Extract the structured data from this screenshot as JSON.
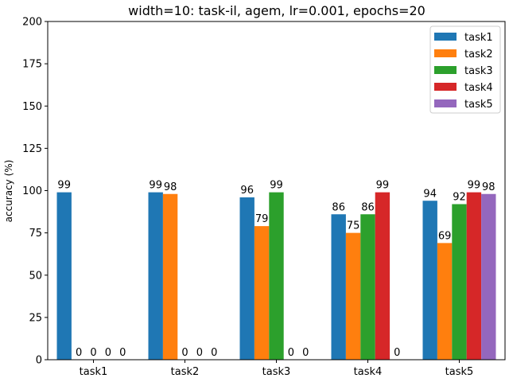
{
  "chart_data": {
    "type": "bar",
    "title": "width=10: task-il, agem, lr=0.001, epochs=20",
    "xlabel": "",
    "ylabel": "accuracy (%)",
    "ylim": [
      0,
      200
    ],
    "yticks": [
      0,
      25,
      50,
      75,
      100,
      125,
      150,
      175,
      200
    ],
    "categories": [
      "task1",
      "task2",
      "task3",
      "task4",
      "task5"
    ],
    "series": [
      {
        "name": "task1",
        "color": "#1f77b4",
        "values": [
          99,
          99,
          96,
          86,
          94
        ]
      },
      {
        "name": "task2",
        "color": "#ff7f0e",
        "values": [
          0,
          98,
          79,
          75,
          69
        ]
      },
      {
        "name": "task3",
        "color": "#2ca02c",
        "values": [
          0,
          0,
          99,
          86,
          92
        ]
      },
      {
        "name": "task4",
        "color": "#d62728",
        "values": [
          0,
          0,
          0,
          99,
          99
        ]
      },
      {
        "name": "task5",
        "color": "#9467bd",
        "values": [
          0,
          0,
          0,
          0,
          98
        ]
      }
    ],
    "data_labels": [
      [
        "99",
        "0",
        "0",
        "0",
        "0"
      ],
      [
        "99",
        "98",
        "0",
        "0",
        "0"
      ],
      [
        "96",
        "79",
        "99",
        "0",
        "0"
      ],
      [
        "86",
        "75",
        "86",
        "99",
        "0"
      ],
      [
        "94",
        "69",
        "92",
        "99",
        "98"
      ]
    ],
    "grid": false,
    "legend_position": "top-right"
  }
}
